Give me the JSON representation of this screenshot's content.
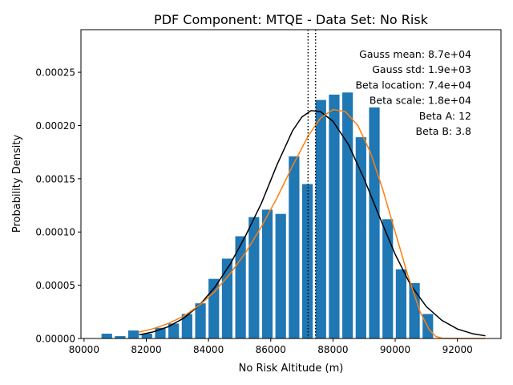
{
  "chart_data": {
    "type": "bar",
    "title": "PDF Component: MTQE - Data Set: No Risk",
    "xlabel": "No Risk Altitude (m)",
    "ylabel": "Probability Density",
    "xlim": [
      79900,
      93400
    ],
    "ylim": [
      0,
      0.00029
    ],
    "xticks": [
      80000,
      82000,
      84000,
      86000,
      88000,
      90000,
      92000
    ],
    "xtick_labels": [
      "80000",
      "82000",
      "84000",
      "86000",
      "88000",
      "90000",
      "92000"
    ],
    "yticks": [
      0,
      5e-05,
      0.0001,
      0.00015,
      0.0002,
      0.00025
    ],
    "ytick_labels": [
      "0.00000",
      "0.00005",
      "0.00010",
      "0.00015",
      "0.00020",
      "0.00025"
    ],
    "grid": false,
    "bar_width": 340,
    "histogram": {
      "name": "",
      "color": "#1f77b4",
      "x": [
        80730,
        81160,
        81590,
        82020,
        82450,
        82880,
        83310,
        83740,
        84170,
        84600,
        85030,
        85460,
        85890,
        86320,
        86750,
        87180,
        87610,
        88040,
        88470,
        88900,
        89330,
        89760,
        90190,
        90620,
        91050
      ],
      "values": [
        4.5e-06,
        2.2e-06,
        7.5e-06,
        4.5e-06,
        1e-05,
        1.4e-05,
        2.3e-05,
        3.3e-05,
        5.6e-05,
        7.5e-05,
        9.6e-05,
        0.000114,
        0.000121,
        0.000117,
        0.000171,
        0.000145,
        0.000224,
        0.000229,
        0.000231,
        0.000189,
        0.000217,
        0.000112,
        6.5e-05,
        5.2e-05,
        2.3e-05
      ]
    },
    "series": [
      {
        "kind": "gauss",
        "color": "#000000",
        "x": [
          81770,
          82200,
          82700,
          83200,
          83700,
          84200,
          84700,
          85200,
          85700,
          86200,
          86700,
          87000,
          87300,
          87600,
          88000,
          88500,
          89000,
          89500,
          90000,
          90500,
          91000,
          91500,
          92000,
          92500,
          92900
        ],
        "values": [
          3.4e-06,
          6e-06,
          1.1e-05,
          1.9e-05,
          3.1e-05,
          4.8e-05,
          7e-05,
          9.7e-05,
          0.000127,
          0.000163,
          0.000195,
          0.000208,
          0.000214,
          0.000213,
          0.000204,
          0.000182,
          0.00015,
          0.000114,
          7.9e-05,
          5e-05,
          3e-05,
          1.7e-05,
          8.9e-06,
          4.4e-06,
          2.5e-06
        ]
      },
      {
        "kind": "beta",
        "color": "#ff7f0e",
        "x": [
          81770,
          82200,
          82700,
          83200,
          83700,
          84200,
          84700,
          85200,
          85700,
          86200,
          86700,
          87200,
          87600,
          88000,
          88400,
          88800,
          89200,
          89600,
          90000,
          90400,
          90800,
          91100,
          91300,
          91500,
          92000,
          92500,
          92900
        ],
        "values": [
          6e-06,
          9e-06,
          1.4e-05,
          2.1e-05,
          3.1e-05,
          4.4e-05,
          6.1e-05,
          8.1e-05,
          0.000105,
          0.000132,
          0.000162,
          0.00019,
          0.000207,
          0.000215,
          0.000213,
          0.0002,
          0.000175,
          0.00014,
          0.0001,
          6e-05,
          2.5e-05,
          8e-06,
          2e-06,
          3e-07,
          0,
          0,
          0
        ]
      }
    ],
    "vlines": [
      87200,
      87440
    ],
    "annotations": [
      "Gauss mean: 8.7e+04",
      "Gauss std: 1.9e+03",
      "Beta location: 7.4e+04",
      "Beta scale: 1.8e+04",
      "Beta A: 12",
      "Beta B: 3.8"
    ]
  }
}
